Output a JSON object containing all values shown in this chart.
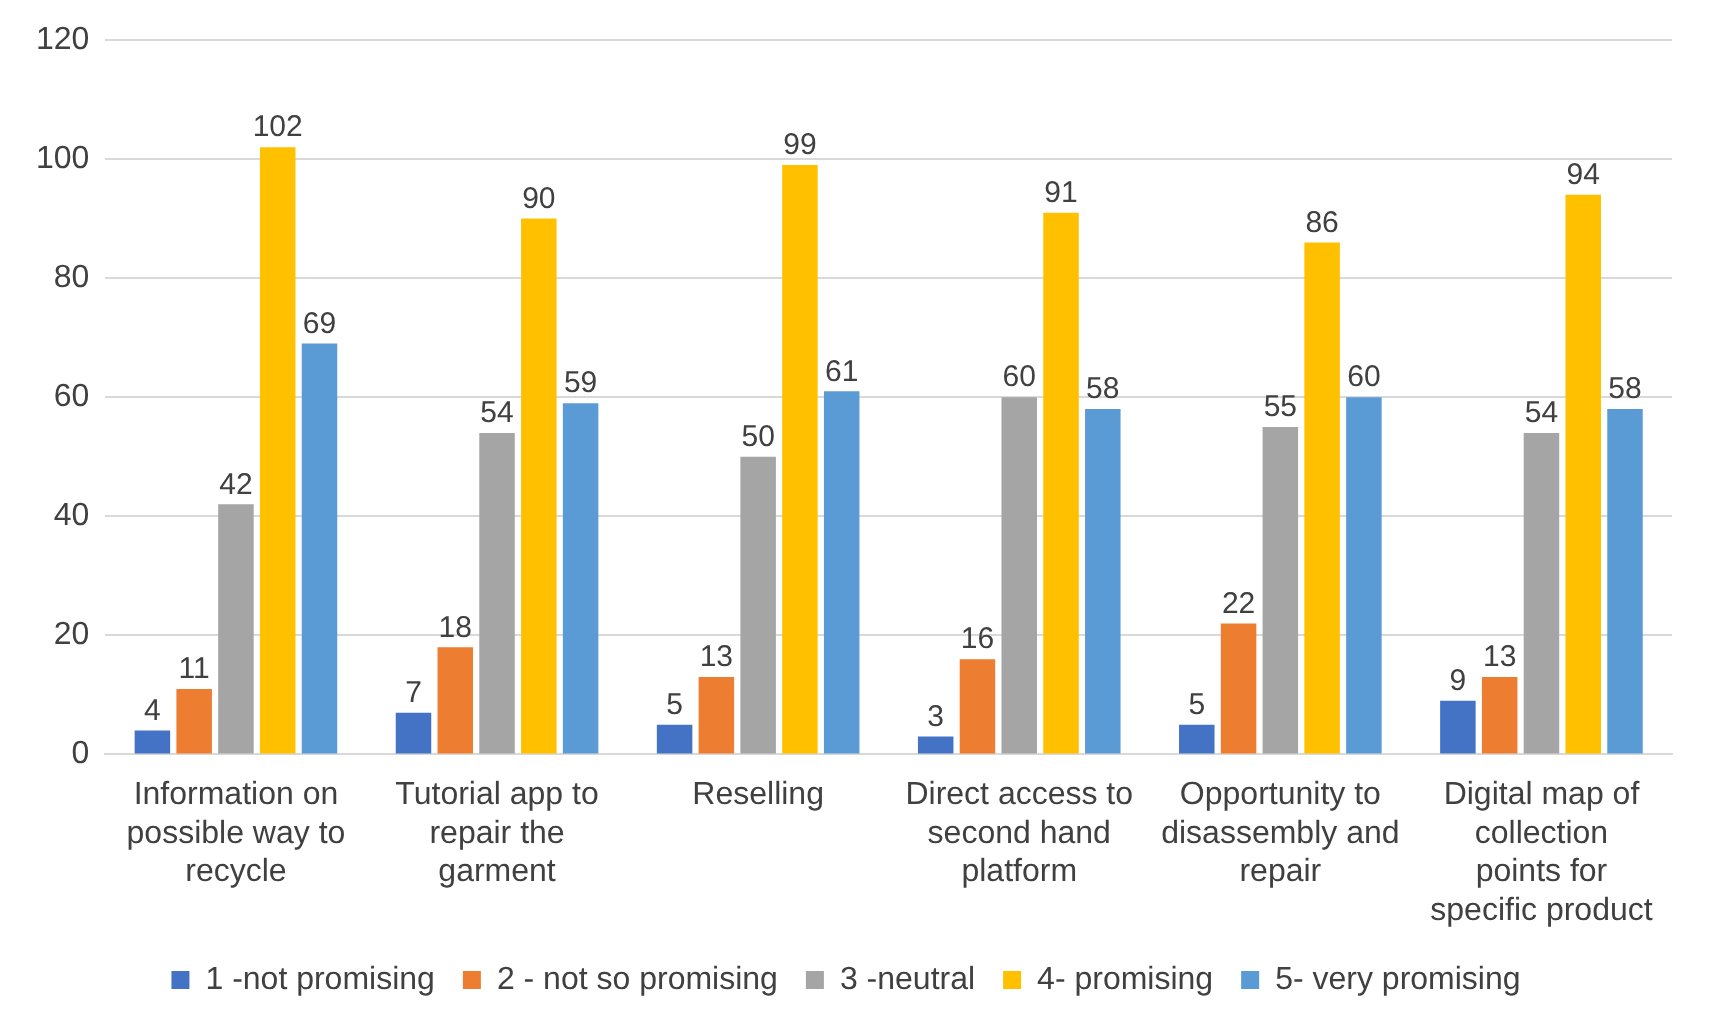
{
  "chart_data": {
    "type": "bar",
    "categories": [
      "Information on possible way to recycle",
      "Tutorial app to repair the garment",
      "Reselling",
      "Direct access to second hand platform",
      "Opportunity to disassembly and repair",
      "Digital map of collection points for specific product"
    ],
    "series": [
      {
        "name": "1 -not promising",
        "color": "#4472c4",
        "values": [
          4,
          7,
          5,
          3,
          5,
          9
        ]
      },
      {
        "name": "2 - not so promising",
        "color": "#ed7d31",
        "values": [
          11,
          18,
          13,
          16,
          22,
          13
        ]
      },
      {
        "name": "3 -neutral",
        "color": "#a5a5a5",
        "values": [
          42,
          54,
          50,
          60,
          55,
          54
        ]
      },
      {
        "name": "4- promising",
        "color": "#ffc000",
        "values": [
          102,
          90,
          99,
          91,
          86,
          94
        ]
      },
      {
        "name": "5- very promising",
        "color": "#5b9bd5",
        "values": [
          69,
          59,
          61,
          58,
          60,
          58
        ]
      }
    ],
    "ylim": [
      0,
      120
    ],
    "yticks": [
      0,
      20,
      40,
      60,
      80,
      100,
      120
    ],
    "grid": "y",
    "legend": "bottom",
    "data_labels": true
  }
}
